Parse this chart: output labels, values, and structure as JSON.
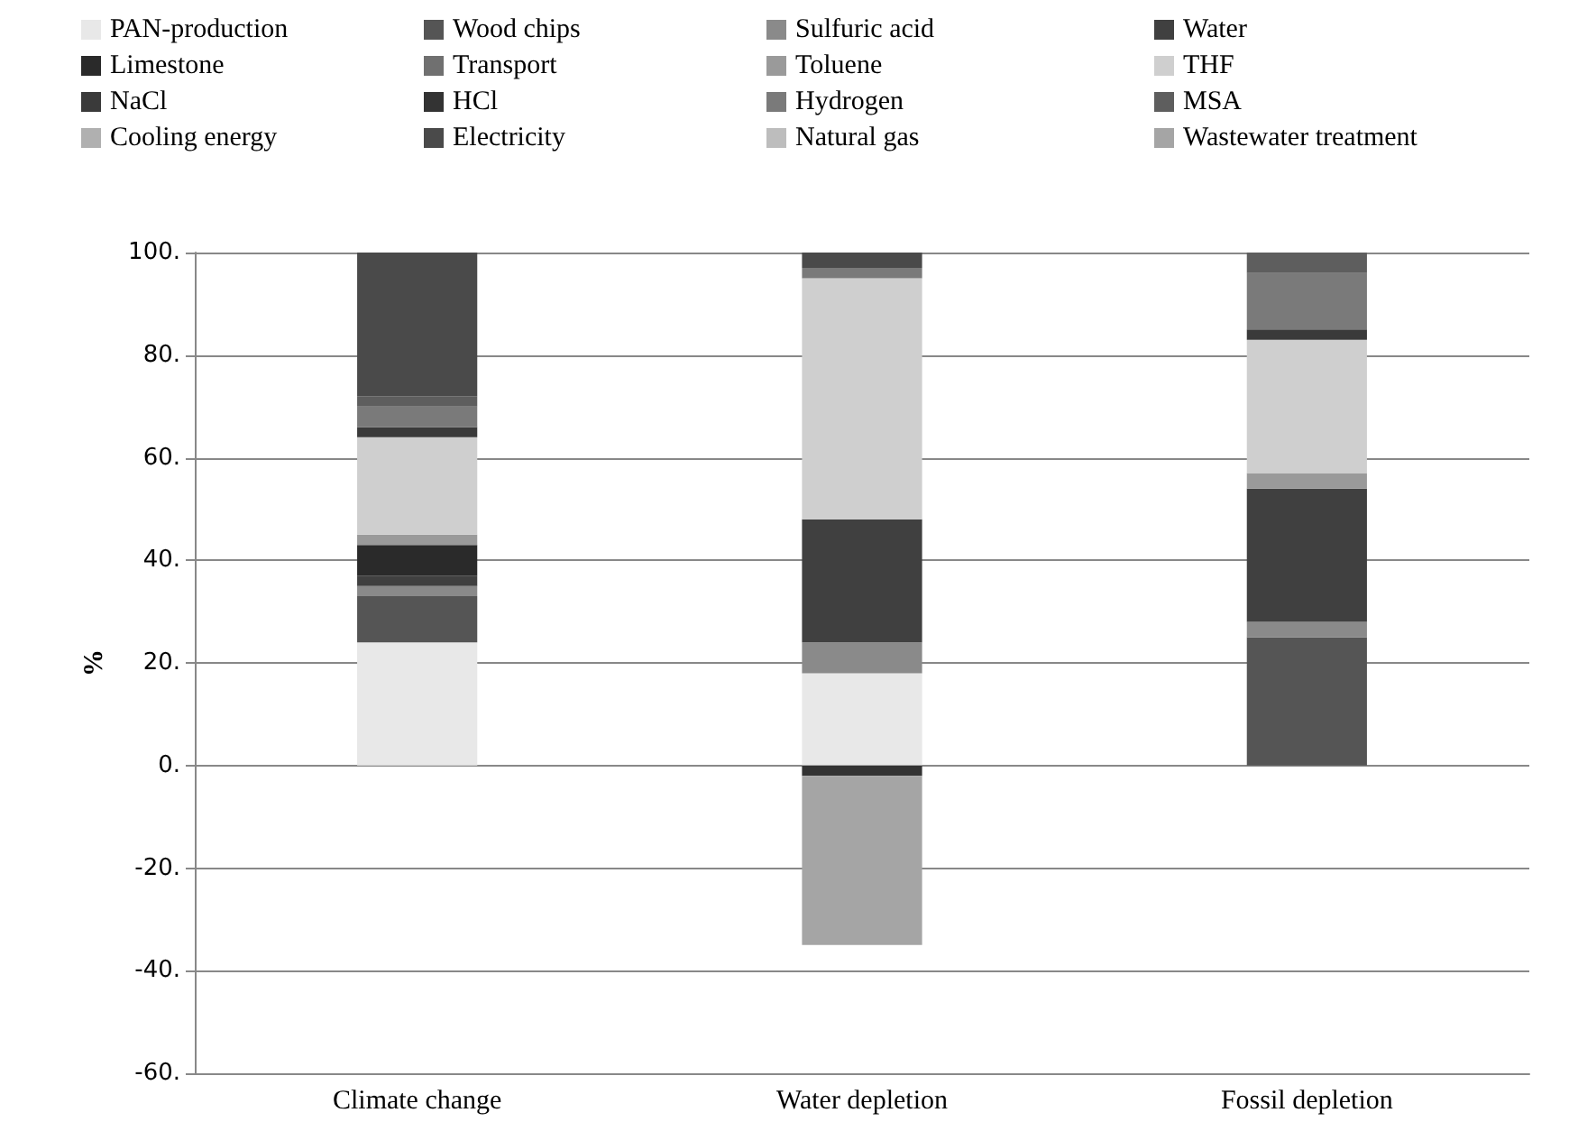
{
  "chart_data": {
    "type": "bar",
    "stacked": true,
    "ylabel": "%",
    "categories": [
      "Climate change",
      "Water depletion",
      "Fossil depletion"
    ],
    "ylim": [
      -60,
      100
    ],
    "yticks": [
      {
        "value": -60,
        "label": "-60."
      },
      {
        "value": -40,
        "label": "-40."
      },
      {
        "value": -20,
        "label": "-20."
      },
      {
        "value": 0,
        "label": "0."
      },
      {
        "value": 20,
        "label": "20."
      },
      {
        "value": 40,
        "label": "40."
      },
      {
        "value": 60,
        "label": "60."
      },
      {
        "value": 80,
        "label": "80."
      },
      {
        "value": 100,
        "label": "100."
      }
    ],
    "grid": "y",
    "legend": "top",
    "series": [
      {
        "name": "PAN-production",
        "color": "#e8e8e8",
        "values": [
          24,
          18,
          0
        ]
      },
      {
        "name": "Wood chips",
        "color": "#555555",
        "values": [
          9,
          0,
          25
        ]
      },
      {
        "name": "Sulfuric acid",
        "color": "#8a8a8a",
        "values": [
          2,
          6,
          3
        ]
      },
      {
        "name": "Water",
        "color": "#404040",
        "values": [
          2,
          24,
          26
        ]
      },
      {
        "name": "Limestone",
        "color": "#2a2a2a",
        "values": [
          6,
          0,
          0
        ]
      },
      {
        "name": "Transport",
        "color": "#707070",
        "values": [
          0,
          0,
          0
        ]
      },
      {
        "name": "Toluene",
        "color": "#9a9a9a",
        "values": [
          2,
          0,
          3
        ]
      },
      {
        "name": "THF",
        "color": "#cfcfcf",
        "values": [
          19,
          47,
          26
        ]
      },
      {
        "name": "NaCl",
        "color": "#3a3a3a",
        "values": [
          2,
          0,
          2
        ]
      },
      {
        "name": "HCl",
        "color": "#333333",
        "values": [
          0,
          -2,
          0
        ]
      },
      {
        "name": "Hydrogen",
        "color": "#7a7a7a",
        "values": [
          4,
          2,
          11
        ]
      },
      {
        "name": "MSA",
        "color": "#5e5e5e",
        "values": [
          2,
          0,
          4
        ]
      },
      {
        "name": "Cooling energy",
        "color": "#b0b0b0",
        "values": [
          0,
          0,
          0
        ]
      },
      {
        "name": "Electricity",
        "color": "#4a4a4a",
        "values": [
          28,
          3,
          0
        ]
      },
      {
        "name": "Natural gas",
        "color": "#bdbdbd",
        "values": [
          0,
          0,
          0
        ]
      },
      {
        "name": "Wastewater treatment",
        "color": "#a5a5a5",
        "values": [
          0,
          -33,
          0
        ]
      }
    ]
  }
}
